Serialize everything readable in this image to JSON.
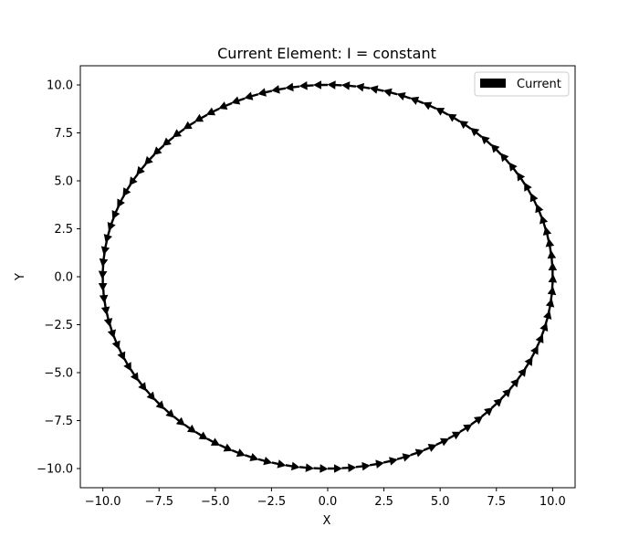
{
  "chart_data": {
    "type": "quiver",
    "title": "Current Element: I = constant",
    "xlabel": "X",
    "ylabel": "Y",
    "xlim": [
      -11.0,
      11.0
    ],
    "ylim": [
      -11.0,
      11.0
    ],
    "xticks": [
      -10.0,
      -7.5,
      -5.0,
      -2.5,
      0.0,
      2.5,
      5.0,
      7.5,
      10.0
    ],
    "xtick_labels": [
      "−10.0",
      "−7.5",
      "−5.0",
      "−2.5",
      "0.0",
      "2.5",
      "5.0",
      "7.5",
      "10.0"
    ],
    "yticks": [
      -10.0,
      -7.5,
      -5.0,
      -2.5,
      0.0,
      2.5,
      5.0,
      7.5,
      10.0
    ],
    "ytick_labels": [
      "−10.0",
      "−7.5",
      "−5.0",
      "−2.5",
      "0.0",
      "2.5",
      "5.0",
      "7.5",
      "10.0"
    ],
    "grid": false,
    "legend": {
      "position": "top-right",
      "entries": [
        {
          "label": "Current",
          "color": "#000000"
        }
      ]
    },
    "series": [
      {
        "name": "Current",
        "color": "#000000",
        "radius": 10,
        "center": [
          0,
          0
        ],
        "arrow_count": 100,
        "direction": "counterclockwise",
        "magnitude": "constant"
      }
    ]
  }
}
